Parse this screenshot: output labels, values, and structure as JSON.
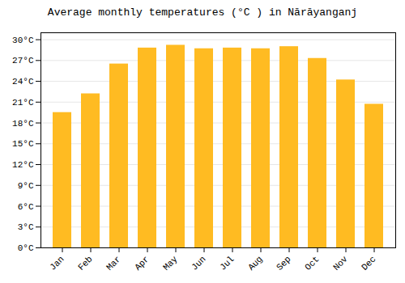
{
  "chart_data": {
    "type": "bar",
    "title": "Average monthly temperatures (°C ) in Nārāyanganj",
    "categories": [
      "Jan",
      "Feb",
      "Mar",
      "Apr",
      "May",
      "Jun",
      "Jul",
      "Aug",
      "Sep",
      "Oct",
      "Nov",
      "Dec"
    ],
    "values": [
      19.5,
      22.2,
      26.5,
      28.8,
      29.2,
      28.7,
      28.8,
      28.7,
      29.0,
      27.3,
      24.2,
      20.7
    ],
    "color": "#FFBB22",
    "ylim": [
      0,
      31
    ],
    "yticks": [
      {
        "value": 0,
        "label": "0°C"
      },
      {
        "value": 3,
        "label": "3°C"
      },
      {
        "value": 6,
        "label": "6°C"
      },
      {
        "value": 9,
        "label": "9°C"
      },
      {
        "value": 12,
        "label": "12°C"
      },
      {
        "value": 15,
        "label": "15°C"
      },
      {
        "value": 18,
        "label": "18°C"
      },
      {
        "value": 21,
        "label": "21°C"
      },
      {
        "value": 24,
        "label": "24°C"
      },
      {
        "value": 27,
        "label": "27°C"
      },
      {
        "value": 30,
        "label": "30°C"
      }
    ],
    "grid": true
  }
}
